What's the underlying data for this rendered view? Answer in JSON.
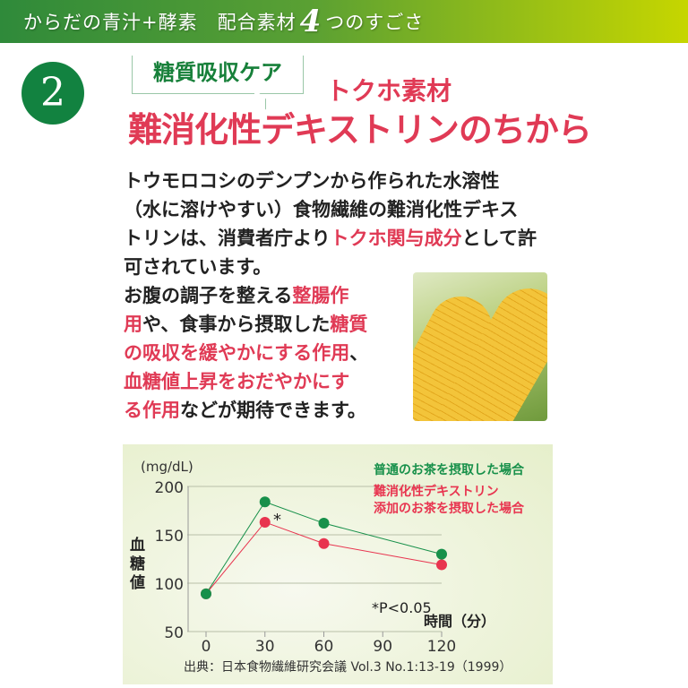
{
  "banner": {
    "pre": "からだの青汁+酵素　配合素材",
    "number": "4",
    "post": "つのすごさ"
  },
  "section_number": "2",
  "bubble_label": "糖質吸収ケア",
  "tokuho_label": "トクホ素材",
  "headline": "難消化性デキストリンのちから",
  "body_lines": [
    [
      {
        "t": "トウモロコシのデンプンから作られた水溶性"
      }
    ],
    [
      {
        "t": "（水に溶けやすい）食物繊維の難消化性デキス"
      }
    ],
    [
      {
        "t": "トリンは、消費者庁より"
      },
      {
        "t": "トクホ関与成分",
        "hl": true
      },
      {
        "t": "として許"
      }
    ],
    [
      {
        "t": "可されています。"
      }
    ],
    [
      {
        "t": "お腹の調子を整える"
      },
      {
        "t": "整腸作",
        "hl": true
      }
    ],
    [
      {
        "t": "用",
        "hl": true
      },
      {
        "t": "や、食事から摂取した"
      },
      {
        "t": "糖質",
        "hl": true
      }
    ],
    [
      {
        "t": "の吸収を緩やかにする作用",
        "hl": true
      },
      {
        "t": "、"
      }
    ],
    [
      {
        "t": "血糖値上昇をおだやかにす",
        "hl": true
      }
    ],
    [
      {
        "t": "る作用",
        "hl": true
      },
      {
        "t": "などが期待できます。"
      }
    ]
  ],
  "colors": {
    "green": "#17904a",
    "red": "#e8344f",
    "accent_red": "#e03a55",
    "banner_start": "#2f8a3a",
    "banner_end": "#c6d600"
  },
  "chart_data": {
    "type": "line",
    "x": [
      0,
      30,
      60,
      120
    ],
    "xticks": [
      "0",
      "30",
      "60",
      "90",
      "120"
    ],
    "yticks": [
      "50",
      "100",
      "150",
      "200"
    ],
    "ylim": [
      50,
      200
    ],
    "xlim": [
      0,
      120
    ],
    "ylabel": "血糖値",
    "yunit": "(mg/dL)",
    "xlabel": "時間（分）",
    "grid": true,
    "legend_position": "top-right",
    "series": [
      {
        "name": "普通のお茶を摂取した場合",
        "color": "#17904a",
        "values": [
          89,
          184,
          162,
          130
        ]
      },
      {
        "name": "難消化性デキストリン添加のお茶を摂取した場合",
        "name_lines": [
          "難消化性デキストリン",
          "添加のお茶を摂取した場合"
        ],
        "color": "#e8344f",
        "values": [
          89,
          163,
          141,
          119
        ]
      }
    ],
    "annotations": {
      "asterisk": "*",
      "pvalue": "*P<0.05"
    },
    "source": "出典：日本食物繊維研究会議 Vol.3 No.1:13-19（1999）"
  }
}
